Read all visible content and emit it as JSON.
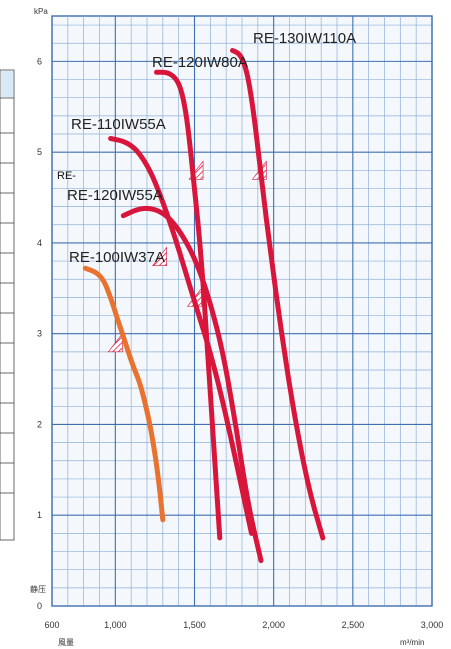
{
  "chart_data": {
    "type": "line",
    "y_unit": "kPa",
    "x_unit": "m³/min",
    "ylabel": "静压",
    "xlabel": "風量",
    "xlim": [
      600,
      3000
    ],
    "ylim": [
      0,
      6.5
    ],
    "x_ticks": [
      {
        "value": 600,
        "label": "600"
      },
      {
        "value": 1000,
        "label": "1,000"
      },
      {
        "value": 1500,
        "label": "1,500"
      },
      {
        "value": 2000,
        "label": "2,000"
      },
      {
        "value": 2500,
        "label": "2,500"
      },
      {
        "value": 3000,
        "label": "3,000"
      }
    ],
    "y_ticks": [
      {
        "value": 0,
        "label": "0"
      },
      {
        "value": 1,
        "label": "1"
      },
      {
        "value": 2,
        "label": "2"
      },
      {
        "value": 3,
        "label": "3"
      },
      {
        "value": 4,
        "label": "4"
      },
      {
        "value": 5,
        "label": "5"
      },
      {
        "value": 6,
        "label": "6"
      }
    ],
    "grid": true,
    "series": [
      {
        "name": "RE-100IW37A",
        "color": "#e8722f",
        "x": [
          810,
          880,
          930,
          970,
          1010,
          1060,
          1110,
          1160,
          1220,
          1265,
          1300
        ],
        "y": [
          3.72,
          3.68,
          3.58,
          3.4,
          3.18,
          2.92,
          2.65,
          2.44,
          2.0,
          1.52,
          0.95
        ]
      },
      {
        "name": "RE-120IW55A",
        "color": "#d8163b",
        "x": [
          1050,
          1150,
          1240,
          1330,
          1420,
          1510,
          1590,
          1680,
          1760,
          1840,
          1920
        ],
        "y": [
          4.3,
          4.38,
          4.38,
          4.3,
          4.1,
          3.8,
          3.4,
          2.8,
          2.0,
          1.1,
          0.5
        ]
      },
      {
        "name": "RE-110IW55A",
        "color": "#d8163b",
        "x": [
          970,
          1060,
          1140,
          1220,
          1290,
          1370,
          1440,
          1510,
          1600,
          1700,
          1860
        ],
        "y": [
          5.15,
          5.12,
          5.02,
          4.8,
          4.5,
          4.1,
          3.7,
          3.3,
          2.8,
          2.1,
          0.8
        ]
      },
      {
        "name": "RE-120IW80A",
        "color": "#d8163b",
        "x": [
          1260,
          1330,
          1380,
          1415,
          1445,
          1470,
          1500,
          1540,
          1580,
          1620,
          1660
        ],
        "y": [
          5.88,
          5.88,
          5.82,
          5.7,
          5.45,
          5.1,
          4.6,
          3.9,
          2.9,
          1.8,
          0.75
        ]
      },
      {
        "name": "RE-130IW110A",
        "color": "#d8163b",
        "x": [
          1740,
          1790,
          1830,
          1860,
          1890,
          1930,
          1980,
          2050,
          2130,
          2220,
          2310
        ],
        "y": [
          6.12,
          6.08,
          5.9,
          5.6,
          5.2,
          4.6,
          3.9,
          3.0,
          2.1,
          1.3,
          0.75
        ]
      }
    ],
    "labels": [
      {
        "text": "RE-130IW110A"
      },
      {
        "text": "RE-120IW80A"
      },
      {
        "text": "RE-110IW55A"
      },
      {
        "text": "RE-"
      },
      {
        "text": "RE-120IW55A"
      },
      {
        "text": "RE-100IW37A"
      }
    ]
  }
}
